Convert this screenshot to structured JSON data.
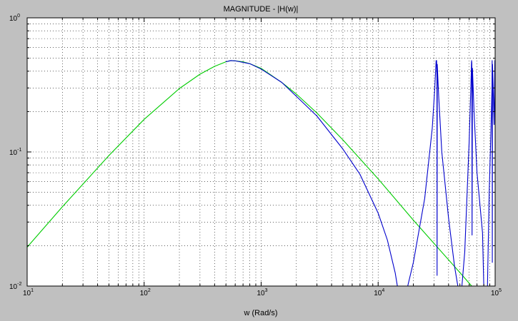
{
  "figure": {
    "background_color": "#c0c0c0",
    "plot_background_color": "#ffffff"
  },
  "chart_data": {
    "type": "line",
    "title": "MAGNITUDE - |H(w)|",
    "xlabel": "w (Rad/s)",
    "ylabel": "",
    "xscale": "log",
    "yscale": "log",
    "xlim": [
      10,
      100000
    ],
    "ylim": [
      0.01,
      1
    ],
    "grid": true,
    "grid_style": "dotted",
    "legend": "none",
    "xticks": [
      {
        "base": "10",
        "exp": "1"
      },
      {
        "base": "10",
        "exp": "2"
      },
      {
        "base": "10",
        "exp": "3"
      },
      {
        "base": "10",
        "exp": "4"
      },
      {
        "base": "10",
        "exp": "5"
      }
    ],
    "yticks": [
      {
        "base": "10",
        "exp": "-2"
      },
      {
        "base": "10",
        "exp": "-1"
      },
      {
        "base": "10",
        "exp": "0"
      }
    ],
    "series": [
      {
        "color": "#00cc00",
        "description": "analog magnitude response",
        "points": [
          [
            10,
            0.0195
          ],
          [
            20,
            0.039
          ],
          [
            50,
            0.094
          ],
          [
            100,
            0.175
          ],
          [
            200,
            0.297
          ],
          [
            300,
            0.38
          ],
          [
            400,
            0.435
          ],
          [
            500,
            0.47
          ],
          [
            550,
            0.48
          ],
          [
            600,
            0.478
          ],
          [
            700,
            0.47
          ],
          [
            800,
            0.455
          ],
          [
            1000,
            0.42
          ],
          [
            1500,
            0.33
          ],
          [
            2000,
            0.27
          ],
          [
            3000,
            0.195
          ],
          [
            5000,
            0.123
          ],
          [
            10000,
            0.063
          ],
          [
            20000,
            0.031
          ],
          [
            50000,
            0.0126
          ],
          [
            60000,
            0.0105
          ],
          [
            63000,
            0.01
          ]
        ]
      },
      {
        "color": "#0000cc",
        "description": "digital magnitude response",
        "points": [
          [
            500,
            0.47
          ],
          [
            550,
            0.48
          ],
          [
            600,
            0.478
          ],
          [
            800,
            0.455
          ],
          [
            1000,
            0.415
          ],
          [
            1500,
            0.33
          ],
          [
            2000,
            0.26
          ],
          [
            3000,
            0.185
          ],
          [
            5000,
            0.105
          ],
          [
            7000,
            0.068
          ],
          [
            10000,
            0.035
          ],
          [
            12000,
            0.022
          ],
          [
            14000,
            0.0125
          ],
          [
            14600,
            0.01
          ],
          null,
          [
            17900,
            0.01
          ],
          [
            20000,
            0.015
          ],
          [
            25000,
            0.045
          ],
          [
            29000,
            0.15
          ],
          [
            30500,
            0.3
          ],
          [
            31300,
            0.48
          ],
          [
            31600,
            0.48
          ],
          [
            31800,
            0.35
          ],
          [
            31900,
            0.012
          ],
          [
            32000,
            0.45
          ],
          [
            33000,
            0.25
          ],
          [
            35000,
            0.1
          ],
          [
            40000,
            0.032
          ],
          [
            45000,
            0.014
          ],
          [
            48000,
            0.01
          ],
          null,
          [
            52000,
            0.01
          ],
          [
            55000,
            0.018
          ],
          [
            60000,
            0.12
          ],
          [
            62000,
            0.3
          ],
          [
            62900,
            0.48
          ],
          [
            63200,
            0.46
          ],
          [
            63500,
            0.024
          ],
          [
            64000,
            0.42
          ],
          [
            66000,
            0.2
          ],
          [
            70000,
            0.07
          ],
          [
            78000,
            0.025
          ],
          [
            80000,
            0.01
          ],
          null,
          [
            86000,
            0.01
          ],
          [
            89000,
            0.05
          ],
          [
            92000,
            0.14
          ],
          [
            94000,
            0.3
          ],
          [
            94300,
            0.48
          ],
          [
            94600,
            0.015
          ],
          [
            95000,
            0.45
          ],
          [
            98000,
            0.16
          ],
          [
            99500,
            0.48
          ],
          [
            100000,
            0.2
          ]
        ]
      }
    ]
  }
}
